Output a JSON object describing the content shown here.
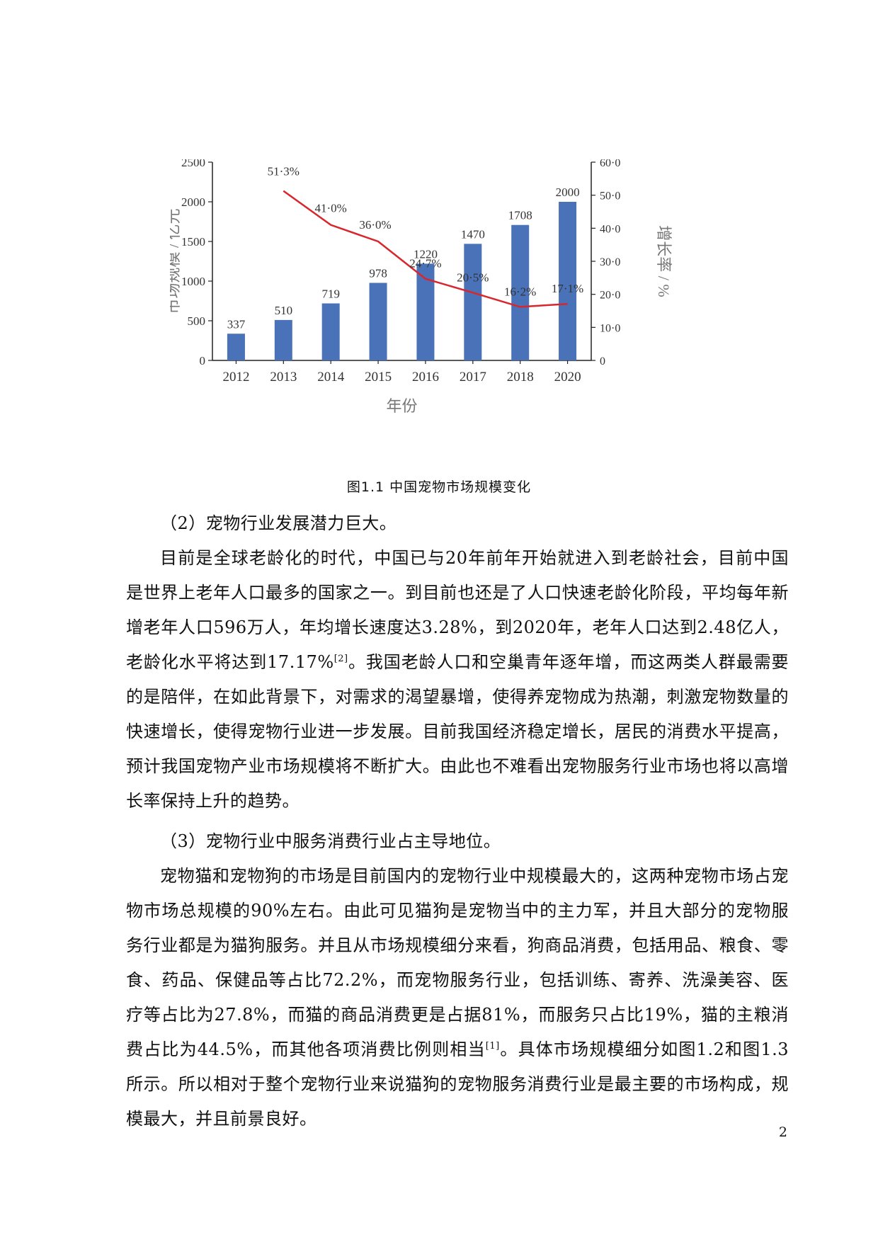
{
  "chart_data": {
    "type": "bar+line",
    "categories": [
      "2012",
      "2013",
      "2014",
      "2015",
      "2016",
      "2017",
      "2018",
      "2020"
    ],
    "series": [
      {
        "type": "bar",
        "values": [
          337,
          510,
          719,
          978,
          1220,
          1470,
          1708,
          2000
        ],
        "labels": [
          "337",
          "510",
          "719",
          "978",
          "1220",
          "1470",
          "1708",
          "2000"
        ],
        "color": "#4a72b8"
      },
      {
        "type": "line",
        "values": [
          null,
          51.3,
          41.0,
          36.0,
          24.7,
          20.5,
          16.2,
          17.1
        ],
        "labels": [
          "",
          "51·3%",
          "41·0%",
          "36·0%",
          "24·7%",
          "20·5%",
          "16·2%",
          "17·1%"
        ],
        "color": "#d9262d"
      }
    ],
    "xlabel": "年份",
    "ylabel_left": "市场规模 / 亿元",
    "ylabel_right": "增长率 / %",
    "ylim_left": [
      0,
      2500
    ],
    "ylim_right": [
      0,
      60
    ],
    "yticks_left": [
      "0",
      "500",
      "1000",
      "1500",
      "2000",
      "2500"
    ],
    "yticks_right": [
      "0",
      "10·0",
      "20·0",
      "30·0",
      "40·0",
      "50·0",
      "60·0"
    ],
    "grid": false
  },
  "caption": "图1.1  中国宠物市场规模变化",
  "paragraphs": [
    {
      "text": "（2）宠物行业发展潜力巨大。"
    },
    {
      "text": "目前是全球老龄化的时代，中国已与20年前年开始就进入到老龄社会，目前中国是世界上老年人口最多的国家之一。到目前也还是了人口快速老龄化阶段，平均每年新增老年人口596万人，年均增长速度达3.28%，到2020年，老年人口达到2.48亿人，老龄化水平将达到17.17%",
      "sup": "[2]",
      "after": "。我国老龄人口和空巢青年逐年增，而这两类人群最需要的是陪伴，在如此背景下，对需求的渴望暴增，使得养宠物成为热潮，刺激宠物数量的快速增长，使得宠物行业进一步发展。目前我国经济稳定增长，居民的消费水平提高，预计我国宠物产业市场规模将不断扩大。由此也不难看出宠物服务行业市场也将以高增长率保持上升的趋势。"
    },
    {
      "text": "（3）宠物行业中服务消费行业占主导地位。"
    },
    {
      "text": "宠物猫和宠物狗的市场是目前国内的宠物行业中规模最大的，这两种宠物市场占宠物市场总规模的90%左右。由此可见猫狗是宠物当中的主力军，并且大部分的宠物服务行业都是为猫狗服务。并且从市场规模细分来看，狗商品消费，包括用品、粮食、零食、药品、保健品等占比72.2%，而宠物服务行业，包括训练、寄养、洗澡美容、医疗等占比为27.8%，而猫的商品消费更是占据81%，而服务只占比19%，猫的主粮消费占比为44.5%，而其他各项消费比例则相当",
      "sup": "[1]",
      "after": "。具体市场规模细分如图1.2和图1.3所示。所以相对于整个宠物行业来说猫狗的宠物服务消费行业是最主要的市场构成，规模最大，并且前景良好。"
    }
  ],
  "page_number": "2"
}
